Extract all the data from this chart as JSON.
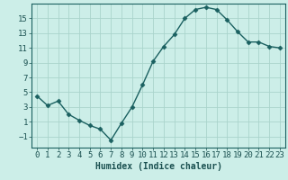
{
  "x": [
    0,
    1,
    2,
    3,
    4,
    5,
    6,
    7,
    8,
    9,
    10,
    11,
    12,
    13,
    14,
    15,
    16,
    17,
    18,
    19,
    20,
    21,
    22,
    23
  ],
  "y": [
    4.5,
    3.2,
    3.8,
    2.0,
    1.2,
    0.5,
    0.0,
    -1.5,
    0.8,
    3.0,
    6.0,
    9.2,
    11.2,
    12.8,
    15.0,
    16.2,
    16.5,
    16.2,
    14.8,
    13.2,
    11.8,
    11.8,
    11.2,
    11.0
  ],
  "line_color": "#1a6060",
  "marker": "D",
  "marker_size": 2.5,
  "bg_color": "#cceee8",
  "grid_color": "#aad4cc",
  "axis_color": "#1a6060",
  "tick_color": "#1a5050",
  "xlabel": "Humidex (Indice chaleur)",
  "xlim": [
    -0.5,
    23.5
  ],
  "ylim": [
    -2.5,
    17.0
  ],
  "yticks": [
    -1,
    1,
    3,
    5,
    7,
    9,
    11,
    13,
    15
  ],
  "xticks": [
    0,
    1,
    2,
    3,
    4,
    5,
    6,
    7,
    8,
    9,
    10,
    11,
    12,
    13,
    14,
    15,
    16,
    17,
    18,
    19,
    20,
    21,
    22,
    23
  ],
  "font_color": "#1a5050",
  "xlabel_fontsize": 7,
  "tick_fontsize": 6.5
}
